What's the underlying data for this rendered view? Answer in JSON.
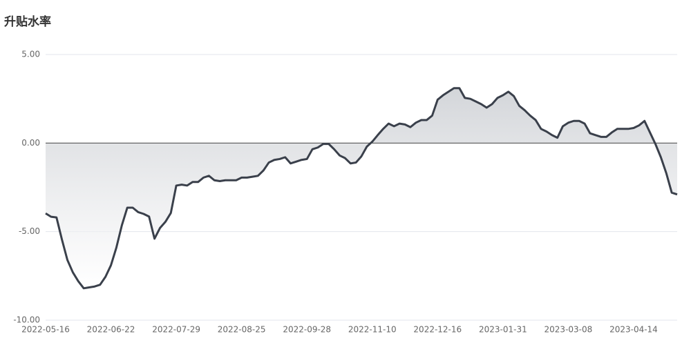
{
  "chart_data": {
    "type": "area",
    "title": "升贴水率",
    "categories": [
      "2022-05-16",
      null,
      null,
      null,
      null,
      null,
      null,
      null,
      null,
      null,
      null,
      null,
      "2022-06-22",
      null,
      null,
      null,
      null,
      null,
      null,
      null,
      null,
      null,
      null,
      null,
      "2022-07-29",
      null,
      null,
      null,
      null,
      null,
      null,
      null,
      null,
      null,
      null,
      null,
      "2022-08-25",
      null,
      null,
      null,
      null,
      null,
      null,
      null,
      null,
      null,
      null,
      null,
      "2022-09-28",
      null,
      null,
      null,
      null,
      null,
      null,
      null,
      null,
      null,
      null,
      null,
      "2022-11-10",
      null,
      null,
      null,
      null,
      null,
      null,
      null,
      null,
      null,
      null,
      null,
      "2022-12-16",
      null,
      null,
      null,
      null,
      null,
      null,
      null,
      null,
      null,
      null,
      null,
      "2023-01-31",
      null,
      null,
      null,
      null,
      null,
      null,
      null,
      null,
      null,
      null,
      null,
      "2023-03-08",
      null,
      null,
      null,
      null,
      null,
      null,
      null,
      null,
      null,
      null,
      null,
      "2023-04-14",
      null,
      null,
      null,
      null,
      null,
      null,
      null,
      null
    ],
    "values": [
      -3.97,
      -4.16,
      -4.2,
      -5.45,
      -6.6,
      -7.3,
      -7.8,
      -8.2,
      -8.15,
      -8.1,
      -8.0,
      -7.55,
      -6.9,
      -5.9,
      -4.65,
      -3.65,
      -3.65,
      -3.9,
      -4.0,
      -4.15,
      -5.4,
      -4.8,
      -4.45,
      -3.95,
      -2.4,
      -2.35,
      -2.4,
      -2.2,
      -2.2,
      -1.95,
      -1.85,
      -2.1,
      -2.15,
      -2.1,
      -2.1,
      -2.1,
      -1.95,
      -1.95,
      -1.9,
      -1.85,
      -1.55,
      -1.1,
      -0.95,
      -0.9,
      -0.8,
      -1.15,
      -1.05,
      -0.95,
      -0.9,
      -0.35,
      -0.25,
      -0.05,
      -0.05,
      -0.35,
      -0.7,
      -0.85,
      -1.15,
      -1.1,
      -0.75,
      -0.2,
      0.08,
      0.45,
      0.8,
      1.1,
      0.95,
      1.1,
      1.05,
      0.9,
      1.15,
      1.3,
      1.3,
      1.55,
      2.45,
      2.7,
      2.9,
      3.1,
      3.1,
      2.55,
      2.5,
      2.35,
      2.2,
      2.0,
      2.2,
      2.55,
      2.7,
      2.9,
      2.65,
      2.1,
      1.85,
      1.55,
      1.3,
      0.8,
      0.65,
      0.45,
      0.3,
      0.95,
      1.15,
      1.25,
      1.25,
      1.1,
      0.55,
      0.45,
      0.35,
      0.35,
      0.6,
      0.8,
      0.8,
      0.8,
      0.85,
      1.0,
      1.25,
      0.6,
      -0.05,
      -0.8,
      -1.7,
      -2.8,
      -2.9
    ],
    "color": "#3a404b",
    "ylim": [
      -10,
      5
    ],
    "yticks": [
      {
        "value": -10,
        "label": "-10.00"
      },
      {
        "value": -5,
        "label": "-5.00"
      },
      {
        "value": 0,
        "label": "0.00"
      },
      {
        "value": 5,
        "label": "5.00"
      }
    ],
    "grid": true
  }
}
